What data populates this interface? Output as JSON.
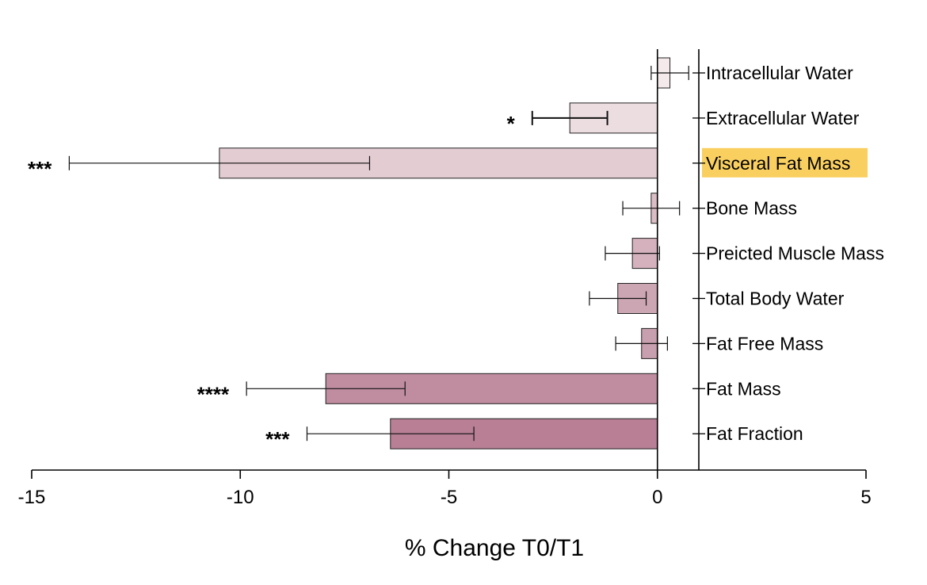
{
  "chart_data": {
    "type": "bar",
    "orientation": "horizontal",
    "categories": [
      "Intracellular Water",
      "Extracellular Water",
      "Visceral Fat Mass",
      "Bone Mass",
      "Preicted Muscle Mass",
      "Total Body Water",
      "Fat Free Mass",
      "Fat Mass",
      "Fat Fraction"
    ],
    "values": [
      0.3,
      -2.1,
      -10.5,
      -0.15,
      -0.6,
      -0.95,
      -0.38,
      -7.95,
      -6.4
    ],
    "errors": [
      0.45,
      0.9,
      3.6,
      0.68,
      0.65,
      0.68,
      0.62,
      1.9,
      2.0
    ],
    "significance": [
      "",
      "*",
      "***",
      "",
      "",
      "",
      "",
      "****",
      "***"
    ],
    "bar_colors": [
      "#f4e9eb",
      "#ecdde0",
      "#e4ccd3",
      "#dbbdc5",
      "#d4b1bc",
      "#cda6b3",
      "#c89fae",
      "#c08da0",
      "#b87f95"
    ],
    "highlighted_category": "Visceral Fat Mass",
    "highlight_color": "#f9cf5f",
    "xlabel": "% Change T0/T1",
    "ylabel": "",
    "title": "",
    "xlim": [
      -15,
      5
    ],
    "xticks": [
      "-15",
      "-10",
      "-5",
      "0",
      "5"
    ],
    "grid": false,
    "legend": "none"
  }
}
